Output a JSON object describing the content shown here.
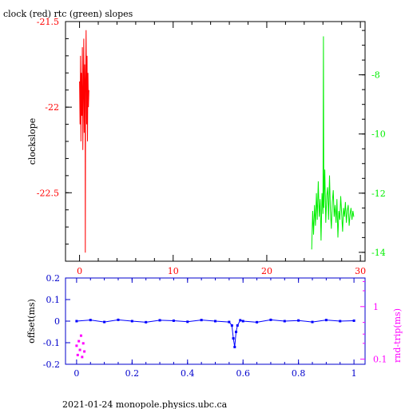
{
  "header": {
    "title": "clock (red) rtc (green) slopes",
    "footer": "2021-01-24 monopole.physics.ubc.ca"
  },
  "colors": {
    "clock": "#ff0000",
    "rtc": "#00ee00",
    "offset": "#0000ff",
    "roundtrip": "#ff00ff",
    "axis_blue": "#0000cc",
    "axis_text": "#000000"
  },
  "chart_data": [
    {
      "type": "line",
      "title": "clock (red) rtc (green) slopes",
      "ylabel": "clockslope",
      "xlim": [
        -1.5,
        30.5
      ],
      "ylim_left": [
        -22.9,
        -21.5
      ],
      "ylim_right": [
        -14.3,
        -6.2
      ],
      "x_ticks": [
        0,
        10,
        20,
        30
      ],
      "y_ticks_left": [
        -21.5,
        -22,
        -22.5
      ],
      "y_ticks_right": [
        -8,
        -10,
        -12,
        -14
      ],
      "series": [
        {
          "name": "clock",
          "axis": "left",
          "x": [
            0.0,
            0.05,
            0.1,
            0.15,
            0.2,
            0.25,
            0.3,
            0.35,
            0.4,
            0.45,
            0.5,
            0.55,
            0.6,
            0.62,
            0.65,
            0.7,
            0.75,
            0.8,
            0.85,
            0.9,
            0.95,
            1.0
          ],
          "y": [
            -21.85,
            -22.1,
            -21.7,
            -22.2,
            -21.8,
            -22.05,
            -21.65,
            -22.25,
            -21.9,
            -21.6,
            -22.15,
            -21.75,
            -22.0,
            -22.85,
            -21.85,
            -21.55,
            -22.1,
            -21.7,
            -22.2,
            -21.8,
            -22.0,
            -21.9
          ]
        },
        {
          "name": "rtc",
          "axis": "right",
          "x": [
            24.8,
            24.9,
            25.0,
            25.1,
            25.2,
            25.3,
            25.4,
            25.5,
            25.6,
            25.7,
            25.8,
            25.9,
            26.0,
            26.05,
            26.1,
            26.2,
            26.3,
            26.4,
            26.5,
            26.6,
            26.7,
            26.8,
            26.9,
            27.0,
            27.1,
            27.2,
            27.3,
            27.4,
            27.5,
            27.6,
            27.7,
            27.8,
            27.9,
            28.0,
            28.1,
            28.2,
            28.3,
            28.4,
            28.5,
            28.6,
            28.7,
            28.8,
            28.9,
            29.0,
            29.1,
            29.2,
            29.3
          ],
          "y": [
            -13.9,
            -12.6,
            -13.4,
            -12.4,
            -13.1,
            -12.0,
            -12.9,
            -11.6,
            -12.8,
            -12.2,
            -13.6,
            -12.0,
            -12.7,
            -6.7,
            -12.5,
            -11.2,
            -13.0,
            -12.1,
            -11.8,
            -12.9,
            -11.4,
            -12.6,
            -13.2,
            -12.3,
            -11.9,
            -12.8,
            -12.4,
            -13.0,
            -12.2,
            -13.5,
            -12.6,
            -12.9,
            -12.1,
            -12.7,
            -13.3,
            -12.5,
            -12.8,
            -12.3,
            -13.0,
            -12.6,
            -12.4,
            -13.1,
            -12.7,
            -12.5,
            -12.9,
            -12.6,
            -12.8
          ]
        }
      ]
    },
    {
      "type": "scatter",
      "ylabel_left": "offset(ms)",
      "ylabel_right": "rnd-trip(ms)",
      "xlim": [
        -0.04,
        1.04
      ],
      "ylim_left": [
        -0.2,
        0.2
      ],
      "right_scale": "log",
      "ylim_right": [
        0.08,
        3.5
      ],
      "x_ticks": [
        0,
        0.2,
        0.4,
        0.6,
        0.8,
        1
      ],
      "y_ticks_left": [
        0.2,
        0.1,
        0,
        -0.1,
        -0.2
      ],
      "y_ticks_right": [
        1,
        0.1
      ],
      "series": [
        {
          "name": "offset",
          "axis": "left",
          "x": [
            0.0,
            0.05,
            0.1,
            0.15,
            0.2,
            0.25,
            0.3,
            0.35,
            0.4,
            0.45,
            0.5,
            0.55,
            0.56,
            0.565,
            0.57,
            0.575,
            0.58,
            0.59,
            0.6,
            0.65,
            0.7,
            0.75,
            0.8,
            0.85,
            0.9,
            0.95,
            1.0
          ],
          "y": [
            0.0,
            0.005,
            -0.004,
            0.006,
            0.0,
            -0.005,
            0.004,
            0.002,
            -0.003,
            0.005,
            0.0,
            -0.004,
            -0.02,
            -0.08,
            -0.12,
            -0.05,
            -0.02,
            0.004,
            0.0,
            -0.005,
            0.006,
            0.0,
            0.003,
            -0.004,
            0.005,
            0.0,
            0.002
          ]
        },
        {
          "name": "rnd-trip",
          "axis": "right",
          "x": [
            0.0,
            0.004,
            0.008,
            0.012,
            0.016,
            0.02,
            0.024,
            0.028
          ],
          "y": [
            0.18,
            0.12,
            0.22,
            0.15,
            0.28,
            0.11,
            0.2,
            0.14
          ]
        }
      ]
    }
  ]
}
